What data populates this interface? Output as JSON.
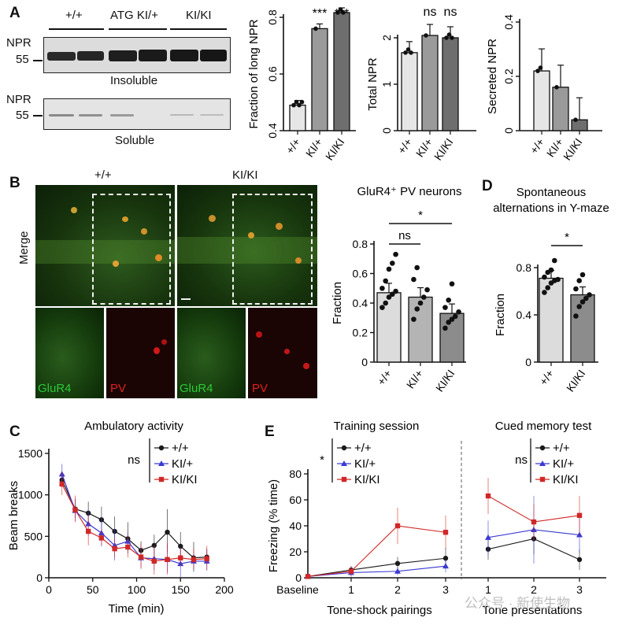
{
  "panel_letters": {
    "a": "A",
    "b": "B",
    "c": "C",
    "d": "D",
    "e": "E"
  },
  "blot": {
    "groups": [
      "+/+",
      "ATG KI/+",
      "KI/KI"
    ],
    "insoluble": {
      "row_label": "NPR",
      "marker": "55",
      "caption": "Insoluble"
    },
    "soluble": {
      "row_label": "NPR",
      "marker": "55",
      "caption": "Soluble"
    }
  },
  "micrograph": {
    "col_plus": "+/+",
    "col_kiki": "KI/KI",
    "row_label": "Merge",
    "glur4": "GluR4",
    "pv": "PV"
  },
  "watermark": "公众号 · 新使生物",
  "chart_data": [
    {
      "id": "A1",
      "type": "bar",
      "categories": [
        "+/+",
        "KI/+",
        "KI/KI"
      ],
      "values": [
        0.49,
        0.76,
        0.82
      ],
      "ylabel": "Fraction of long NPR",
      "ylim": [
        0.4,
        0.8
      ],
      "yticks": [
        "0.4",
        "0.6",
        "0.8"
      ],
      "yticks_val": [
        0.4,
        0.6,
        0.8
      ],
      "colors": [
        "#e6e6e6",
        "#9a9a9a",
        "#6e6e6e"
      ],
      "significance": [
        "",
        "***",
        "***"
      ]
    },
    {
      "id": "A2",
      "type": "bar",
      "categories": [
        "+/+",
        "KI/+",
        "KI/KI"
      ],
      "values": [
        1.68,
        2.05,
        2.0
      ],
      "ylabel": "Total NPR",
      "ylim": [
        0,
        2
      ],
      "yticks": [
        "0",
        "1",
        "2"
      ],
      "yticks_val": [
        0,
        1,
        2
      ],
      "colors": [
        "#e6e6e6",
        "#9a9a9a",
        "#6e6e6e"
      ],
      "significance": [
        "",
        "ns",
        "ns"
      ]
    },
    {
      "id": "A3",
      "type": "bar",
      "categories": [
        "+/+",
        "KI/+",
        "KI/KI"
      ],
      "values": [
        0.22,
        0.16,
        0.04
      ],
      "ylabel": "Secreted NPR",
      "ylim": [
        0,
        0.4
      ],
      "yticks": [
        "0",
        "0.2",
        "0.4"
      ],
      "yticks_val": [
        0,
        0.2,
        0.4
      ],
      "colors": [
        "#e6e6e6",
        "#9a9a9a",
        "#6e6e6e"
      ],
      "significance": [
        "",
        "",
        ""
      ]
    },
    {
      "id": "B",
      "type": "bar",
      "title": "GluR4⁺ PV neurons",
      "categories": [
        "+/+",
        "KI/+",
        "KI/KI"
      ],
      "values": [
        0.47,
        0.44,
        0.33
      ],
      "points": [
        [
          0.37,
          0.4,
          0.44,
          0.46,
          0.48,
          0.5,
          0.55,
          0.63,
          0.67,
          0.73
        ],
        [
          0.29,
          0.36,
          0.4,
          0.44,
          0.49,
          0.56,
          0.64
        ],
        [
          0.23,
          0.27,
          0.29,
          0.31,
          0.34,
          0.37,
          0.42,
          0.53
        ]
      ],
      "ylabel": "Fraction",
      "ylim": [
        0,
        0.8
      ],
      "yticks": [
        "0",
        "0.2",
        "0.4",
        "0.6",
        "0.8"
      ],
      "yticks_val": [
        0,
        0.2,
        0.4,
        0.6,
        0.8
      ],
      "colors": [
        "#dcdcdc",
        "#b4b4b4",
        "#8c8c8c"
      ],
      "comparisons": [
        {
          "label": "ns",
          "from": 0,
          "to": 1
        },
        {
          "label": "*",
          "from": 0,
          "to": 2
        }
      ]
    },
    {
      "id": "D",
      "type": "bar",
      "title": "Spontaneous alternations in Y-maze",
      "categories": [
        "+/+",
        "KI/KI"
      ],
      "values": [
        0.71,
        0.57
      ],
      "points": [
        [
          0.59,
          0.63,
          0.67,
          0.69,
          0.7,
          0.72,
          0.76,
          0.78,
          0.86
        ],
        [
          0.39,
          0.47,
          0.51,
          0.54,
          0.57,
          0.62,
          0.69,
          0.74
        ]
      ],
      "ylabel": "Fraction",
      "ylim": [
        0,
        0.8
      ],
      "yticks": [
        "0",
        "0.4",
        "0.8"
      ],
      "yticks_val": [
        0,
        0.4,
        0.8
      ],
      "colors": [
        "#dcdcdc",
        "#8c8c8c"
      ],
      "comparisons": [
        {
          "label": "*",
          "from": 0,
          "to": 1
        }
      ]
    },
    {
      "id": "C",
      "type": "line",
      "title": "Ambulatory activity",
      "xlabel": "Time (min)",
      "ylabel": "Beam breaks",
      "xlim": [
        0,
        200
      ],
      "ylim": [
        0,
        1500
      ],
      "xticks": [
        "0",
        "50",
        "100",
        "150",
        "200"
      ],
      "xticks_val": [
        0,
        50,
        100,
        150,
        200
      ],
      "yticks": [
        "0",
        "500",
        "1000",
        "1500"
      ],
      "yticks_val": [
        0,
        500,
        1000,
        1500
      ],
      "x": [
        15,
        30,
        45,
        60,
        75,
        90,
        105,
        120,
        135,
        150,
        165,
        180
      ],
      "series": [
        {
          "name": "+/+",
          "color": "#1a1a1a",
          "marker": "circle",
          "values": [
            1180,
            830,
            780,
            700,
            560,
            470,
            330,
            390,
            550,
            380,
            240,
            250
          ]
        },
        {
          "name": "KI/+",
          "color": "#3a3ad0",
          "marker": "triangle",
          "values": [
            1250,
            810,
            650,
            540,
            390,
            440,
            240,
            230,
            220,
            170,
            200,
            200
          ]
        },
        {
          "name": "KI/KI",
          "color": "#d02828",
          "marker": "square",
          "values": [
            1130,
            820,
            560,
            480,
            350,
            370,
            250,
            200,
            220,
            240,
            220,
            230
          ]
        }
      ],
      "legend_note": "ns"
    },
    {
      "id": "E1",
      "type": "line",
      "title": "Training session",
      "xlabel": "Tone-shock pairings",
      "ylabel": "Freezing (% time)",
      "ylim": [
        0,
        80
      ],
      "yticks": [
        "0",
        "20",
        "40",
        "60",
        "80"
      ],
      "yticks_val": [
        0,
        20,
        40,
        60,
        80
      ],
      "categories": [
        "Baseline",
        "1",
        "2",
        "3"
      ],
      "series": [
        {
          "name": "+/+",
          "color": "#1a1a1a",
          "marker": "circle",
          "values": [
            1,
            6,
            11,
            15
          ]
        },
        {
          "name": "KI/+",
          "color": "#3a3ad0",
          "marker": "triangle",
          "values": [
            1,
            4,
            5,
            9
          ]
        },
        {
          "name": "KI/KI",
          "color": "#d02828",
          "marker": "square",
          "values": [
            1,
            5,
            40,
            35
          ]
        }
      ],
      "legend_note": "*"
    },
    {
      "id": "E2",
      "type": "line",
      "title": "Cued memory test",
      "xlabel": "Tone presentations",
      "categories": [
        "1",
        "2",
        "3"
      ],
      "ylim": [
        0,
        80
      ],
      "series": [
        {
          "name": "+/+",
          "color": "#1a1a1a",
          "marker": "circle",
          "values": [
            22,
            30,
            14
          ]
        },
        {
          "name": "KI/+",
          "color": "#3a3ad0",
          "marker": "triangle",
          "values": [
            31,
            37,
            33
          ]
        },
        {
          "name": "KI/KI",
          "color": "#d02828",
          "marker": "square",
          "values": [
            63,
            43,
            48
          ]
        }
      ],
      "legend_note": "ns"
    }
  ]
}
